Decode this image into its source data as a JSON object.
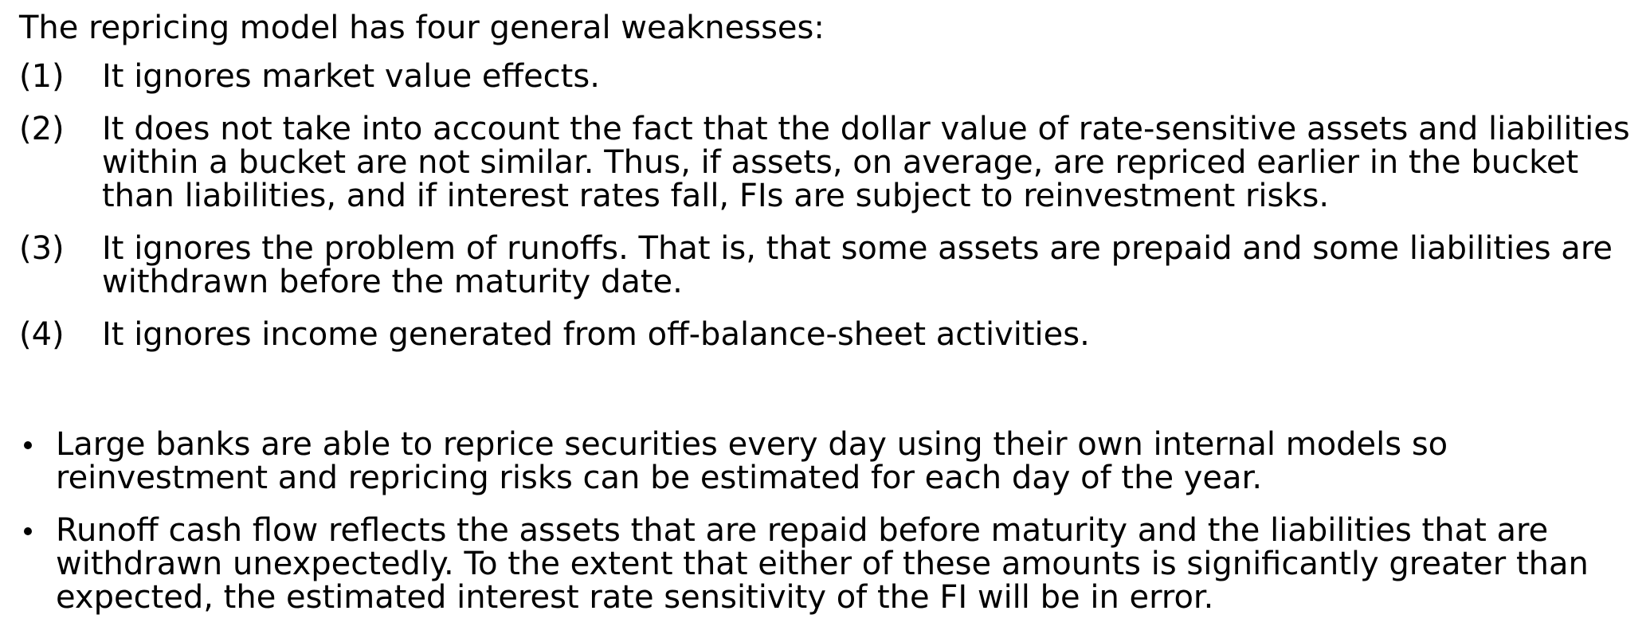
{
  "intro": "The repricing model has four general weaknesses:",
  "weaknesses": [
    {
      "num": "(1)",
      "text": "It ignores market value effects."
    },
    {
      "num": "(2)",
      "text": "It does not take into account the fact that the dollar value of rate-sensitive assets and liabilities within a bucket are not similar. Thus, if assets, on average, are repriced earlier in the bucket than liabilities, and if interest rates fall, FIs are subject to reinvestment risks."
    },
    {
      "num": "(3)",
      "text": "It ignores the problem of runoffs. That is, that some assets are prepaid and some liabilities are withdrawn before the maturity date."
    },
    {
      "num": "(4)",
      "text": "It ignores income generated from off-balance-sheet activities."
    }
  ],
  "bullets": [
    {
      "text": "Large banks are able to reprice securities every day using their own internal models so reinvestment and repricing risks can be estimated for each day of the year."
    },
    {
      "text": "Runoff cash flow reflects the assets that are repaid before maturity and the liabilities that are withdrawn unexpectedly. To the extent that either of these amounts is significantly greater than expected, the estimated interest rate sensitivity of the FI will be in error."
    }
  ]
}
